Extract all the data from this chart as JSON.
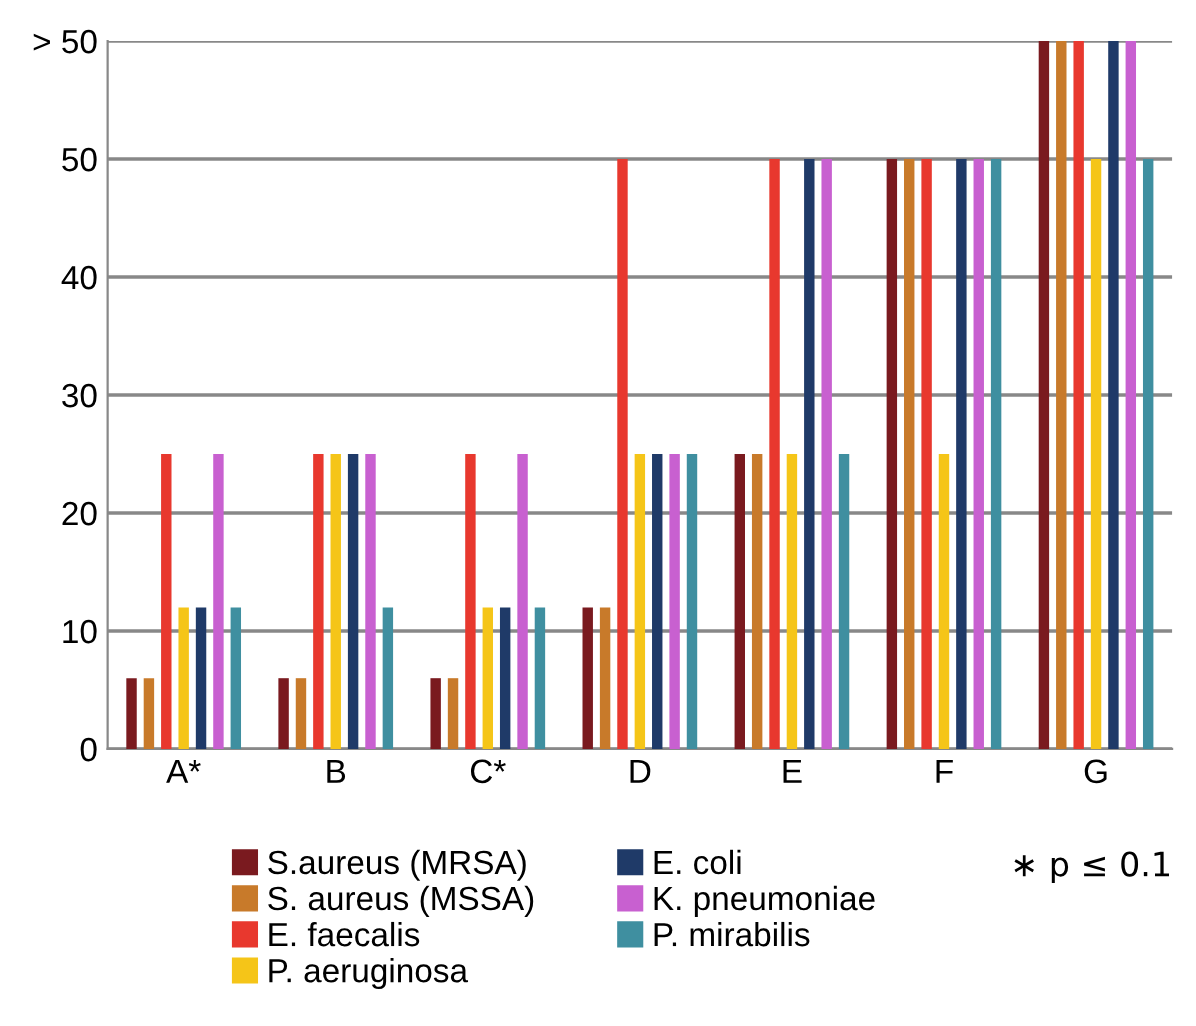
{
  "chart_data": {
    "type": "bar",
    "categories": [
      "A*",
      "B",
      "C*",
      "D",
      "E",
      "F",
      "G"
    ],
    "series": [
      {
        "name": "S.aureus (MRSA)",
        "color": "#7a1a1f",
        "values": [
          6,
          6,
          6,
          12,
          25,
          50,
          60
        ]
      },
      {
        "name": "S. aureus (MSSA)",
        "color": "#c87a2a",
        "values": [
          6,
          6,
          6,
          12,
          25,
          50,
          60
        ]
      },
      {
        "name": "E. faecalis",
        "color": "#e8382e",
        "values": [
          25,
          25,
          25,
          50,
          50,
          50,
          60
        ]
      },
      {
        "name": "P. aeruginosa",
        "color": "#f5c518",
        "values": [
          12,
          25,
          12,
          25,
          25,
          25,
          50
        ]
      },
      {
        "name": "E. coli",
        "color": "#1f3a68",
        "values": [
          12,
          25,
          12,
          25,
          50,
          50,
          60
        ]
      },
      {
        "name": "K. pneumoniae",
        "color": "#c860d0",
        "values": [
          25,
          25,
          25,
          25,
          50,
          50,
          60
        ]
      },
      {
        "name": "P. mirabilis",
        "color": "#3f8fa0",
        "values": [
          12,
          12,
          12,
          25,
          25,
          50,
          50
        ]
      }
    ],
    "ylim": [
      0,
      60
    ],
    "yticks": [
      0,
      10,
      20,
      30,
      40,
      50,
      {
        "value": 60,
        "label": "> 50"
      }
    ],
    "grid": "y",
    "legend": "bottom",
    "annotations": [
      "∗ p ≤ 0.1"
    ]
  }
}
